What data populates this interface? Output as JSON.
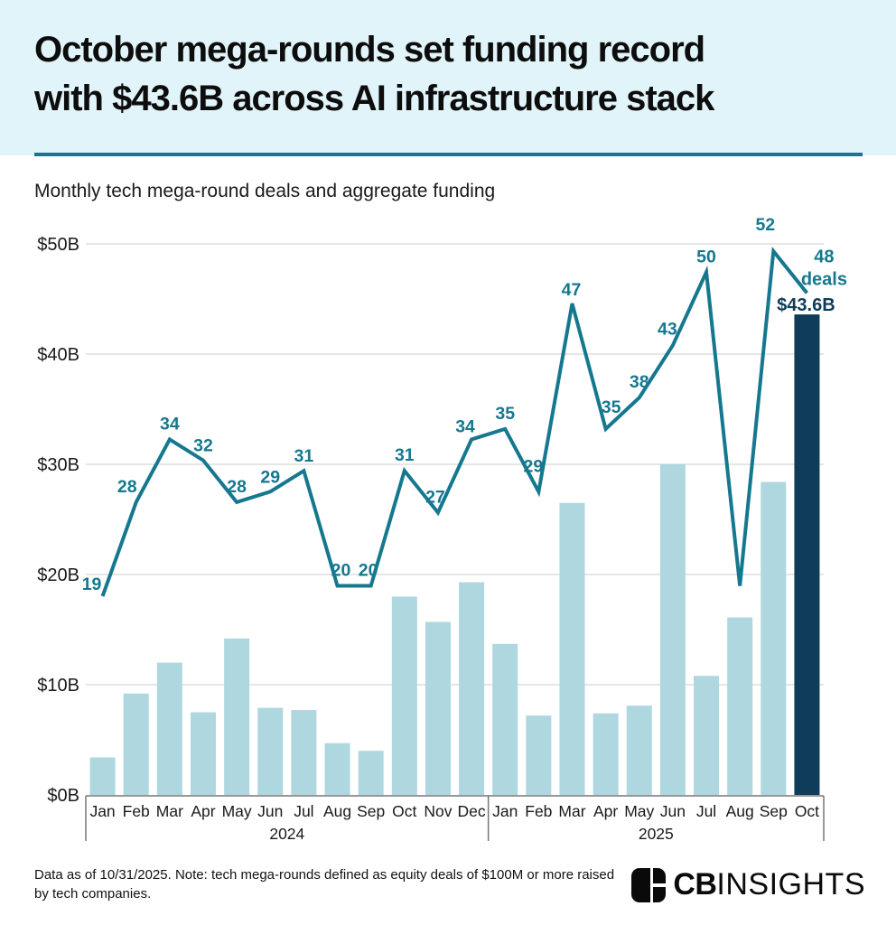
{
  "header": {
    "title_line1": "October mega-rounds set funding record",
    "title_line2": "with $43.6B across AI infrastructure stack",
    "subtitle": "Monthly tech mega-round deals and aggregate funding"
  },
  "colors": {
    "header_bg": "#e1f4fa",
    "accent": "#15788f",
    "bar_light": "#aed7e0",
    "bar_dark": "#0e3c59",
    "grid": "#e6e6e6",
    "axis": "#777777",
    "text": "#1a1a1a",
    "highlight_label_color": "#0e3c59"
  },
  "chart_data": {
    "type": "bar",
    "title": "Monthly tech mega-round deals and aggregate funding",
    "categories": [
      "Jan",
      "Feb",
      "Mar",
      "Apr",
      "May",
      "Jun",
      "Jul",
      "Aug",
      "Sep",
      "Oct",
      "Nov",
      "Dec",
      "Jan",
      "Feb",
      "Mar",
      "Apr",
      "May",
      "Jun",
      "Jul",
      "Aug",
      "Sep",
      "Oct"
    ],
    "year_groups": [
      {
        "label": "2024",
        "span": 12
      },
      {
        "label": "2025",
        "span": 10
      }
    ],
    "series": [
      {
        "name": "Aggregate funding ($B)",
        "type": "bar",
        "values": [
          3.4,
          9.2,
          12.0,
          7.5,
          14.2,
          7.9,
          7.7,
          4.7,
          4.0,
          18.0,
          15.7,
          19.3,
          13.7,
          7.2,
          26.5,
          7.4,
          8.1,
          30.0,
          10.8,
          16.1,
          28.4,
          43.6
        ],
        "highlight_index": 21,
        "highlight_label": "$43.6B"
      },
      {
        "name": "Deal count",
        "type": "line",
        "values": [
          19,
          28,
          34,
          32,
          28,
          29,
          31,
          20,
          20,
          31,
          27,
          34,
          35,
          29,
          47,
          35,
          38,
          43,
          50,
          20,
          52,
          48
        ],
        "point_labels": [
          "19",
          "28",
          "34",
          "32",
          "28",
          "29",
          "31",
          "20",
          "20",
          "31",
          "27",
          "34",
          "35",
          "29",
          "47",
          "35",
          "38",
          "43",
          "50",
          "",
          "52",
          "48"
        ],
        "last_label_suffix": "deals"
      }
    ],
    "y_ticks": [
      "$0B",
      "$10B",
      "$20B",
      "$30B",
      "$40B",
      "$50B"
    ],
    "ylim": [
      0,
      50
    ],
    "y2lim": [
      0,
      52.7
    ],
    "grid": true,
    "legend": "none"
  },
  "footer": {
    "note": "Data as of 10/31/2025. Note: tech mega-rounds defined as equity deals of $100M or more raised by tech companies.",
    "brand": {
      "bold": "CB",
      "light": "INSIGHTS"
    }
  }
}
